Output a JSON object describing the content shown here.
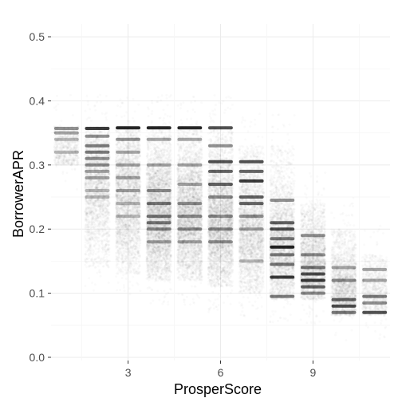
{
  "chart_data": {
    "type": "scatter",
    "title": "",
    "xlabel": "ProsperScore",
    "ylabel": "BorrowerAPR",
    "xlim": [
      0.5,
      11.5
    ],
    "ylim": [
      -0.005,
      0.52
    ],
    "x_ticks": [
      3,
      6,
      9
    ],
    "y_ticks": [
      0.0,
      0.1,
      0.2,
      0.3,
      0.4,
      0.5
    ],
    "y_tick_labels": [
      "0.0",
      "0.1",
      "0.2",
      "0.3",
      "0.4",
      "0.5"
    ],
    "x_tick_labels": [
      "3",
      "6",
      "9"
    ],
    "grid": true,
    "legend": "none",
    "point_color": "#000000",
    "point_alpha": 0.02,
    "jitter": true,
    "categories": [
      {
        "x": 1,
        "range": [
          0.3,
          0.36
        ],
        "center": 0.3,
        "spread": 0.05,
        "count": 700,
        "bands": [
          {
            "y": 0.357,
            "w": 0.5
          },
          {
            "y": 0.35,
            "w": 0.4
          },
          {
            "y": 0.34,
            "w": 0.3
          },
          {
            "y": 0.32,
            "w": 0.3
          }
        ]
      },
      {
        "x": 2,
        "range": [
          0.14,
          0.36
        ],
        "center": 0.27,
        "spread": 0.055,
        "count": 2300,
        "bands": [
          {
            "y": 0.357,
            "w": 0.9
          },
          {
            "y": 0.345,
            "w": 0.5
          },
          {
            "y": 0.33,
            "w": 0.6
          },
          {
            "y": 0.32,
            "w": 0.6
          },
          {
            "y": 0.31,
            "w": 0.5
          },
          {
            "y": 0.3,
            "w": 0.5
          },
          {
            "y": 0.29,
            "w": 0.4
          },
          {
            "y": 0.28,
            "w": 0.4
          },
          {
            "y": 0.26,
            "w": 0.3
          },
          {
            "y": 0.25,
            "w": 0.3
          }
        ]
      },
      {
        "x": 3,
        "range": [
          0.13,
          0.36
        ],
        "center": 0.25,
        "spread": 0.055,
        "count": 3000,
        "bands": [
          {
            "y": 0.358,
            "w": 1.0
          },
          {
            "y": 0.34,
            "w": 0.5
          },
          {
            "y": 0.32,
            "w": 0.4
          },
          {
            "y": 0.3,
            "w": 0.4
          },
          {
            "y": 0.28,
            "w": 0.4
          },
          {
            "y": 0.26,
            "w": 0.4
          },
          {
            "y": 0.24,
            "w": 0.3
          },
          {
            "y": 0.22,
            "w": 0.3
          }
        ]
      },
      {
        "x": 4,
        "range": [
          0.12,
          0.36
        ],
        "center": 0.22,
        "spread": 0.055,
        "count": 4300,
        "bands": [
          {
            "y": 0.358,
            "w": 1.0
          },
          {
            "y": 0.34,
            "w": 0.4
          },
          {
            "y": 0.3,
            "w": 0.4
          },
          {
            "y": 0.26,
            "w": 0.5
          },
          {
            "y": 0.24,
            "w": 0.6
          },
          {
            "y": 0.22,
            "w": 0.6
          },
          {
            "y": 0.21,
            "w": 0.6
          },
          {
            "y": 0.2,
            "w": 0.5
          },
          {
            "y": 0.18,
            "w": 0.4
          }
        ]
      },
      {
        "x": 5,
        "range": [
          0.12,
          0.36
        ],
        "center": 0.22,
        "spread": 0.055,
        "count": 3900,
        "bands": [
          {
            "y": 0.358,
            "w": 1.0
          },
          {
            "y": 0.34,
            "w": 0.4
          },
          {
            "y": 0.3,
            "w": 0.4
          },
          {
            "y": 0.27,
            "w": 0.4
          },
          {
            "y": 0.24,
            "w": 0.5
          },
          {
            "y": 0.22,
            "w": 0.5
          },
          {
            "y": 0.2,
            "w": 0.5
          },
          {
            "y": 0.18,
            "w": 0.4
          }
        ]
      },
      {
        "x": 6,
        "range": [
          0.11,
          0.36
        ],
        "center": 0.21,
        "spread": 0.055,
        "count": 4000,
        "bands": [
          {
            "y": 0.358,
            "w": 0.8
          },
          {
            "y": 0.33,
            "w": 0.5
          },
          {
            "y": 0.305,
            "w": 0.8
          },
          {
            "y": 0.29,
            "w": 0.7
          },
          {
            "y": 0.27,
            "w": 0.7
          },
          {
            "y": 0.25,
            "w": 0.5
          },
          {
            "y": 0.22,
            "w": 0.5
          },
          {
            "y": 0.2,
            "w": 0.5
          },
          {
            "y": 0.18,
            "w": 0.5
          }
        ]
      },
      {
        "x": 7,
        "range": [
          0.1,
          0.33
        ],
        "center": 0.2,
        "spread": 0.055,
        "count": 2900,
        "bands": [
          {
            "y": 0.305,
            "w": 0.8
          },
          {
            "y": 0.29,
            "w": 0.7
          },
          {
            "y": 0.275,
            "w": 0.9
          },
          {
            "y": 0.25,
            "w": 0.7
          },
          {
            "y": 0.24,
            "w": 0.7
          },
          {
            "y": 0.22,
            "w": 0.5
          },
          {
            "y": 0.2,
            "w": 0.4
          },
          {
            "y": 0.15,
            "w": 0.3
          }
        ]
      },
      {
        "x": 8,
        "range": [
          0.09,
          0.33
        ],
        "center": 0.17,
        "spread": 0.05,
        "count": 2900,
        "bands": [
          {
            "y": 0.245,
            "w": 0.5
          },
          {
            "y": 0.21,
            "w": 0.7
          },
          {
            "y": 0.2,
            "w": 0.8
          },
          {
            "y": 0.185,
            "w": 0.6
          },
          {
            "y": 0.172,
            "w": 1.0
          },
          {
            "y": 0.16,
            "w": 0.6
          },
          {
            "y": 0.145,
            "w": 0.6
          },
          {
            "y": 0.125,
            "w": 0.9
          },
          {
            "y": 0.095,
            "w": 0.6
          }
        ]
      },
      {
        "x": 9,
        "range": [
          0.09,
          0.24
        ],
        "center": 0.14,
        "spread": 0.04,
        "count": 2500,
        "bands": [
          {
            "y": 0.19,
            "w": 0.5
          },
          {
            "y": 0.16,
            "w": 0.5
          },
          {
            "y": 0.14,
            "w": 0.6
          },
          {
            "y": 0.13,
            "w": 0.8
          },
          {
            "y": 0.12,
            "w": 0.9
          },
          {
            "y": 0.11,
            "w": 0.7
          },
          {
            "y": 0.1,
            "w": 0.5
          }
        ]
      },
      {
        "x": 10,
        "range": [
          0.065,
          0.2
        ],
        "center": 0.1,
        "spread": 0.035,
        "count": 2000,
        "bands": [
          {
            "y": 0.14,
            "w": 0.4
          },
          {
            "y": 0.12,
            "w": 0.5
          },
          {
            "y": 0.09,
            "w": 0.7
          },
          {
            "y": 0.08,
            "w": 0.8
          },
          {
            "y": 0.07,
            "w": 0.6
          }
        ]
      },
      {
        "x": 11,
        "range": [
          0.065,
          0.16
        ],
        "center": 0.1,
        "spread": 0.03,
        "count": 900,
        "bands": [
          {
            "y": 0.137,
            "w": 0.4
          },
          {
            "y": 0.12,
            "w": 0.4
          },
          {
            "y": 0.095,
            "w": 0.6
          },
          {
            "y": 0.085,
            "w": 0.5
          },
          {
            "y": 0.07,
            "w": 0.8
          }
        ]
      }
    ]
  }
}
